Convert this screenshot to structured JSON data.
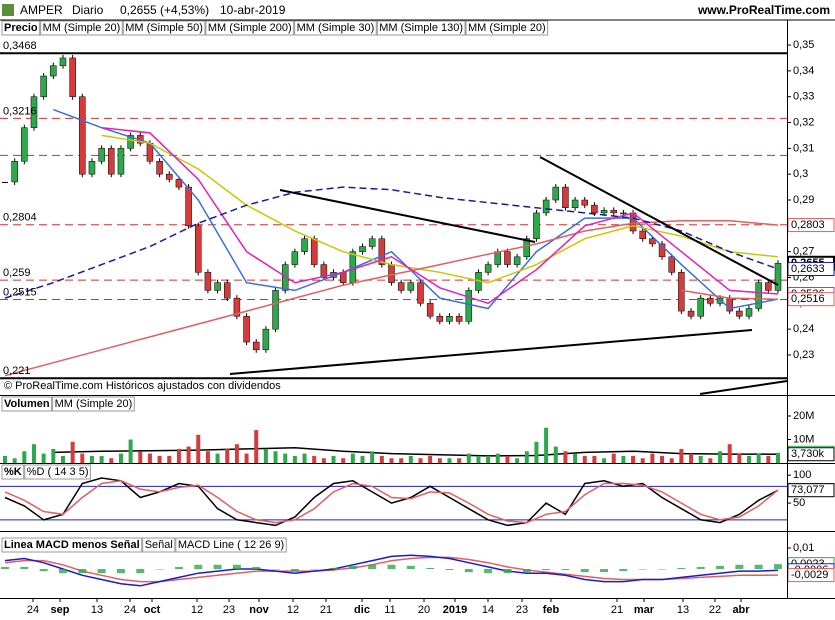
{
  "header": {
    "symbol": "AMPER",
    "period": "Diario",
    "quote": "0,2655 (+4,53%)",
    "date": "10-abr-2019",
    "site": "www.ProRealTime.com"
  },
  "x_axis": {
    "labels": [
      "24",
      "sep",
      "13",
      "24",
      "oct",
      "12",
      "23",
      "nov",
      "12",
      "21",
      "dic",
      "11",
      "20",
      "2019",
      "14",
      "23",
      "feb",
      "21",
      "mar",
      "13",
      "22",
      "abr"
    ]
  },
  "chart_data": [
    {
      "type": "candlestick",
      "footer": "© ProRealTime.com  Históricos ajustados con dividendos",
      "ylim": [
        0.2145,
        0.3535
      ],
      "yticks": [
        {
          "value": 0.35,
          "label": "0,35"
        },
        {
          "value": 0.34,
          "label": "0,34"
        },
        {
          "value": 0.33,
          "label": "0,33"
        },
        {
          "value": 0.32,
          "label": "0,32"
        },
        {
          "value": 0.31,
          "label": "0,31"
        },
        {
          "value": 0.3,
          "label": "0,3"
        },
        {
          "value": 0.29,
          "label": "0,29"
        },
        {
          "value": 0.28,
          "label": "0,28"
        },
        {
          "value": 0.27,
          "label": "0,27"
        },
        {
          "value": 0.26,
          "label": "0,26"
        },
        {
          "value": 0.25,
          "label": "0,25"
        },
        {
          "value": 0.24,
          "label": "0,24"
        },
        {
          "value": 0.23,
          "label": "0,23"
        }
      ],
      "levels": [
        {
          "value": 0.3468,
          "label": "0,3468",
          "style": "solid"
        },
        {
          "value": 0.3216,
          "label": "0,3216",
          "style": "dashed"
        },
        {
          "value": 0.3073,
          "label": null,
          "style": "dashed"
        },
        {
          "value": 0.2804,
          "label": "0,2804",
          "style": "dashed"
        },
        {
          "value": 0.259,
          "label": "0,259",
          "style": "dashed"
        },
        {
          "value": 0.2515,
          "label": "0,2515",
          "style": "dashed"
        },
        {
          "value": 0.221,
          "label": "0,221",
          "style": "solid"
        }
      ],
      "series": [
        {
          "name": "Precio",
          "color": "#000000",
          "up_color": "#2ea84a",
          "down_color": "#d63b3b",
          "values": [
            0.297,
            0.305,
            0.318,
            0.33,
            0.338,
            0.342,
            0.345,
            0.33,
            0.3,
            0.305,
            0.31,
            0.3,
            0.31,
            0.315,
            0.312,
            0.305,
            0.3,
            0.298,
            0.295,
            0.28,
            0.262,
            0.255,
            0.258,
            0.252,
            0.245,
            0.235,
            0.232,
            0.24,
            0.255,
            0.265,
            0.27,
            0.275,
            0.265,
            0.26,
            0.262,
            0.258,
            0.27,
            0.272,
            0.275,
            0.265,
            0.258,
            0.255,
            0.258,
            0.25,
            0.245,
            0.243,
            0.245,
            0.243,
            0.255,
            0.262,
            0.265,
            0.27,
            0.265,
            0.268,
            0.275,
            0.285,
            0.29,
            0.295,
            0.287,
            0.29,
            0.288,
            0.285,
            0.286,
            0.285,
            0.285,
            0.278,
            0.275,
            0.273,
            0.268,
            0.262,
            0.247,
            0.245,
            0.252,
            0.25,
            0.252,
            0.247,
            0.245,
            0.248,
            0.258,
            0.255,
            0.2655
          ]
        },
        {
          "name": "MM (Simple 20)",
          "color": "#3a6fd8",
          "values": [
            null,
            0.325,
            0.318,
            0.312,
            0.29,
            0.258,
            0.255,
            0.262,
            0.27,
            0.252,
            0.248,
            0.27,
            0.283,
            0.283,
            0.265,
            0.248,
            0.2516
          ]
        },
        {
          "name": "MM (Simple 50)",
          "color": "#c8c800",
          "values": [
            null,
            null,
            0.315,
            0.312,
            0.302,
            0.288,
            0.278,
            0.27,
            0.265,
            0.262,
            0.258,
            0.265,
            0.275,
            0.28,
            0.276,
            0.27,
            0.268
          ]
        },
        {
          "name": "MM (Simple 200)",
          "color": "#e06060",
          "values": [
            0.222,
            0.227,
            0.232,
            0.237,
            0.242,
            0.247,
            0.252,
            0.257,
            0.261,
            0.265,
            0.269,
            0.273,
            0.278,
            0.281,
            0.282,
            0.282,
            0.2803
          ]
        },
        {
          "name": "MM (Simple 30)",
          "color": "#e020c0",
          "values": [
            null,
            null,
            0.318,
            0.316,
            0.298,
            0.27,
            0.258,
            0.262,
            0.268,
            0.256,
            0.25,
            0.263,
            0.28,
            0.285,
            0.27,
            0.255,
            0.2536
          ]
        },
        {
          "name": "MM (Simple 130)",
          "color": "#1a1aa0",
          "dash": true,
          "values": [
            0.252,
            0.258,
            0.265,
            0.272,
            0.281,
            0.288,
            0.293,
            0.295,
            0.294,
            0.291,
            0.289,
            0.287,
            0.285,
            0.283,
            0.278,
            0.27,
            0.2633
          ]
        },
        {
          "name": "MM (Simple 20)",
          "color": "#e06060",
          "values": [
            null,
            null,
            null,
            null,
            null,
            null,
            null,
            null,
            null,
            null,
            null,
            null,
            null,
            null,
            0.255,
            0.252,
            0.2516
          ]
        }
      ],
      "value_labels": [
        {
          "value": 0.2803,
          "label": "0,2803",
          "color": "#e06060"
        },
        {
          "value": 0.2655,
          "label": "0,2655",
          "color": "#000000",
          "emphasis": true
        },
        {
          "value": 0.2633,
          "label": "0,2633",
          "color": "#1a1aa0"
        },
        {
          "value": 0.2536,
          "label": "0,2536",
          "color": "#e020c0"
        },
        {
          "value": 0.2516,
          "label": "0,2516",
          "color": "#e06060"
        }
      ]
    },
    {
      "type": "bar",
      "ylim": [
        0,
        28.5
      ],
      "yticks": [
        {
          "value": 20,
          "label": "20M"
        },
        {
          "value": 10,
          "label": "10M"
        }
      ],
      "series": [
        {
          "name": "Volumen",
          "color": "#2ea84a",
          "values": [
            3,
            2,
            5,
            8,
            4,
            6,
            3,
            9,
            4,
            3,
            3,
            2,
            4,
            10,
            5,
            4,
            3,
            3,
            6,
            7,
            12,
            5,
            4,
            6,
            8,
            4,
            14,
            6,
            5,
            4,
            3,
            4,
            3,
            2,
            3,
            2,
            4,
            3,
            5,
            3,
            2,
            2,
            3,
            2,
            3,
            2,
            2,
            2,
            4,
            3,
            3,
            4,
            3,
            2,
            5,
            9,
            15,
            7,
            5,
            4,
            3,
            3,
            2,
            4,
            3,
            3,
            2,
            4,
            3,
            2,
            6,
            4,
            3,
            2,
            5,
            8,
            4,
            3,
            4,
            3,
            4.345
          ]
        },
        {
          "name": "MM (Simple 20)",
          "color": "#000000",
          "values": [
            null,
            4.5,
            5,
            5.2,
            5.5,
            6,
            6.5,
            5,
            4,
            3.5,
            3,
            3.2,
            4.5,
            5,
            4,
            3.8,
            3.73
          ]
        }
      ],
      "value_labels": [
        {
          "value": 4.345,
          "label": "4,345k",
          "color": "#2ea84a"
        },
        {
          "value": 3.73,
          "label": "3,730k",
          "color": "#000000"
        }
      ]
    },
    {
      "type": "line",
      "ylim": [
        0,
        120
      ],
      "yticks": [
        100,
        50
      ],
      "levels": [
        {
          "value": 80,
          "label": null,
          "style": "blue"
        },
        {
          "value": 20,
          "label": null,
          "style": "blue"
        }
      ],
      "series": [
        {
          "name": "%K",
          "color": "#000000",
          "values": [
            60,
            45,
            20,
            30,
            85,
            95,
            90,
            60,
            70,
            85,
            80,
            40,
            20,
            15,
            10,
            25,
            60,
            85,
            90,
            70,
            50,
            60,
            80,
            60,
            40,
            20,
            10,
            15,
            50,
            30,
            85,
            90,
            80,
            85,
            60,
            40,
            20,
            15,
            30,
            55,
            73.077
          ]
        },
        {
          "name": "%D ( 14 3 5)",
          "color": "#e06060",
          "values": [
            70,
            55,
            35,
            30,
            60,
            85,
            90,
            75,
            70,
            78,
            82,
            60,
            35,
            20,
            15,
            20,
            40,
            70,
            85,
            80,
            60,
            58,
            70,
            68,
            50,
            30,
            18,
            15,
            30,
            35,
            65,
            85,
            85,
            82,
            70,
            50,
            30,
            20,
            25,
            45,
            73.394
          ]
        }
      ],
      "value_labels": [
        {
          "value": 73.394,
          "label": "73,394",
          "color": "#e06060"
        },
        {
          "value": 73.077,
          "label": "73,077",
          "color": "#000000"
        }
      ]
    },
    {
      "type": "macd",
      "ylim": [
        -0.0138,
        0.0176
      ],
      "yticks": [
        {
          "value": 0.01,
          "label": "0,01"
        }
      ],
      "series": [
        {
          "name": "Linea MACD menos Señal",
          "color": "#2ea84a",
          "values": [
            0.001,
            0.001,
            -0.001,
            -0.002,
            -0.002,
            -0.002,
            -0.002,
            -0.002,
            0,
            0.001,
            0.002,
            0.002,
            0.002,
            0.001,
            0,
            -0.001,
            0,
            0.0005,
            0.0015,
            0.002,
            0.002,
            0.0015,
            0.0005,
            -0.0005,
            -0.0015,
            -0.002,
            -0.002,
            -0.0015,
            -0.0005,
            -0.0005,
            -0.0015,
            -0.0015,
            -0.001,
            0,
            0,
            0.0005,
            0.001,
            0.0015,
            0.002,
            0.002,
            0.0023
          ]
        },
        {
          "name": "Señal",
          "color": "#e06060",
          "values": [
            0.003,
            0.004,
            0.004,
            0.002,
            -0.001,
            -0.003,
            -0.005,
            -0.006,
            -0.006,
            -0.005,
            -0.004,
            -0.003,
            -0.002,
            -0.001,
            -0.001,
            -0.001,
            -0.001,
            -0.0005,
            0.0005,
            0.002,
            0.004,
            0.005,
            0.0055,
            0.0055,
            0.0045,
            0.003,
            0.001,
            -0.0005,
            -0.0015,
            -0.0025,
            -0.0035,
            -0.0045,
            -0.005,
            -0.005,
            -0.005,
            -0.0045,
            -0.004,
            -0.0035,
            -0.003,
            -0.003,
            -0.0029
          ]
        },
        {
          "name": "MACD Line ( 12 26 9)",
          "color": "#1a1ad0",
          "values": [
            0.004,
            0.005,
            0.003,
            0,
            -0.003,
            -0.005,
            -0.007,
            -0.008,
            -0.006,
            -0.004,
            -0.002,
            -0.001,
            0,
            0,
            -0.001,
            -0.002,
            -0.001,
            0,
            0.002,
            0.004,
            0.006,
            0.0065,
            0.006,
            0.005,
            0.003,
            0.001,
            -0.001,
            -0.002,
            -0.002,
            -0.003,
            -0.005,
            -0.006,
            -0.006,
            -0.005,
            -0.005,
            -0.004,
            -0.003,
            -0.002,
            -0.001,
            -0.001,
            -0.0006
          ]
        }
      ],
      "value_labels": [
        {
          "value": 0.0023,
          "label": "0,0023",
          "color": "#2ea84a"
        },
        {
          "value": -0.0006,
          "label": "-0,0006",
          "color": "#1a1ad0"
        },
        {
          "value": -0.0029,
          "label": "-0,0029",
          "color": "#e06060"
        }
      ]
    }
  ]
}
